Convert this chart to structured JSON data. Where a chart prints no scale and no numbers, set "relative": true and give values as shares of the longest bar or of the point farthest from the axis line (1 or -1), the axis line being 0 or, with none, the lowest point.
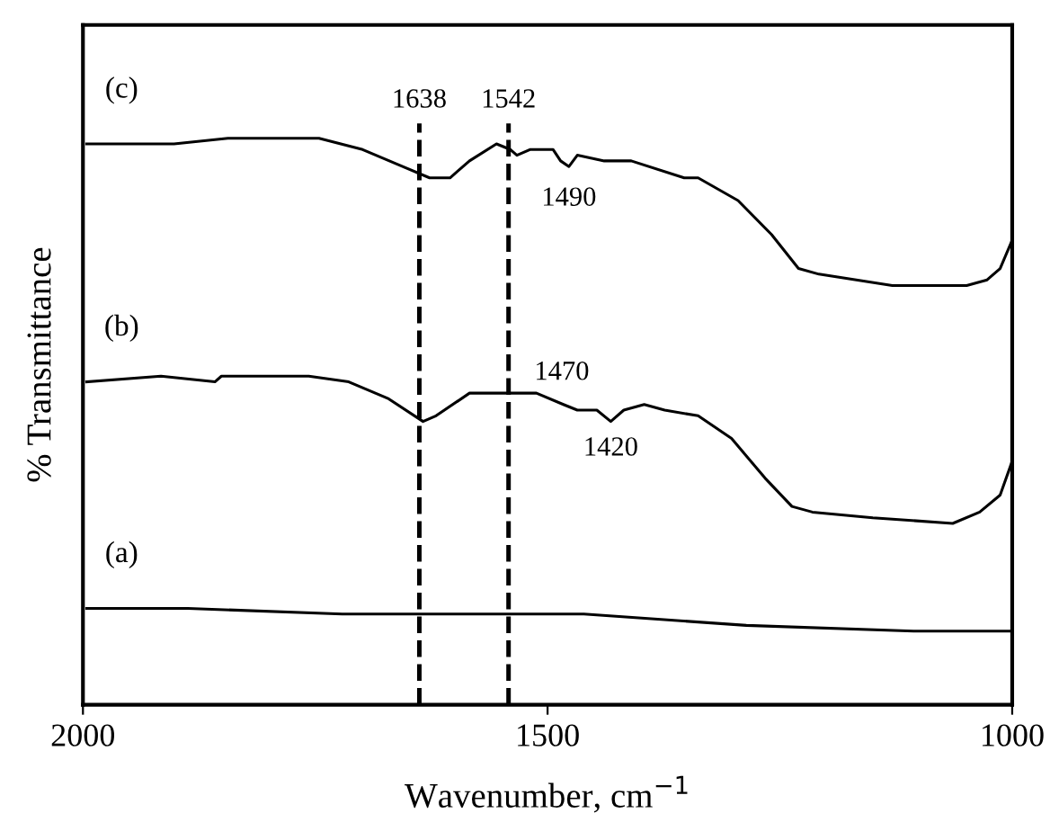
{
  "chart_data": {
    "type": "line",
    "relative": true,
    "xlabel": "Wavenumber, cm$^{−1}$",
    "ylabel": "% Transmittance",
    "xlim": [
      2000,
      1000
    ],
    "xticks": [
      2000,
      1500,
      1000
    ],
    "tick_labels": "x",
    "grid": false,
    "legend": false,
    "line_style": "solid",
    "marker": "none",
    "series": [
      {
        "name": "(c)",
        "color": "#000000",
        "x": [
          1996,
          1902,
          1844,
          1746,
          1699,
          1656,
          1627,
          1605,
          1584,
          1555,
          1540,
          1533,
          1519,
          1494,
          1486,
          1477,
          1468,
          1439,
          1410,
          1353,
          1338,
          1295,
          1259,
          1230,
          1208,
          1129,
          1049,
          1027,
          1013,
          1000
        ],
        "values": [
          0.99,
          0.99,
          1.0,
          1.0,
          0.98,
          0.95,
          0.93,
          0.93,
          0.96,
          0.99,
          0.98,
          0.97,
          0.98,
          0.98,
          0.96,
          0.95,
          0.97,
          0.96,
          0.96,
          0.93,
          0.93,
          0.89,
          0.83,
          0.77,
          0.76,
          0.74,
          0.74,
          0.75,
          0.77,
          0.82
        ]
      },
      {
        "name": "(b)",
        "color": "#000000",
        "x": [
          1996,
          1916,
          1858,
          1851,
          1757,
          1714,
          1671,
          1634,
          1620,
          1584,
          1533,
          1522,
          1512,
          1483,
          1468,
          1447,
          1432,
          1418,
          1396,
          1374,
          1338,
          1302,
          1266,
          1237,
          1215,
          1150,
          1064,
          1035,
          1013,
          1000
        ],
        "values": [
          0.57,
          0.58,
          0.57,
          0.58,
          0.58,
          0.57,
          0.54,
          0.5,
          0.51,
          0.55,
          0.55,
          0.55,
          0.55,
          0.53,
          0.52,
          0.52,
          0.5,
          0.52,
          0.53,
          0.52,
          0.51,
          0.47,
          0.4,
          0.35,
          0.34,
          0.33,
          0.32,
          0.34,
          0.37,
          0.43
        ]
      },
      {
        "name": "(a)",
        "color": "#000000",
        "x": [
          1996,
          1887,
          1721,
          1461,
          1286,
          1106,
          1000
        ],
        "values": [
          0.17,
          0.17,
          0.16,
          0.16,
          0.14,
          0.13,
          0.13
        ]
      }
    ],
    "ref_lines": [
      {
        "axis": "x",
        "value": 1638,
        "label": "1638",
        "line_style": "dashed",
        "color": "#000000"
      },
      {
        "axis": "x",
        "value": 1542,
        "label": "1542",
        "line_style": "dashed",
        "color": "#000000"
      }
    ],
    "annotations": [
      {
        "text": "1490",
        "x": 1477,
        "y": 0.95
      },
      {
        "text": "1470",
        "x": 1525,
        "y": 0.55
      },
      {
        "text": "1420",
        "x": 1432,
        "y": 0.5
      }
    ]
  }
}
